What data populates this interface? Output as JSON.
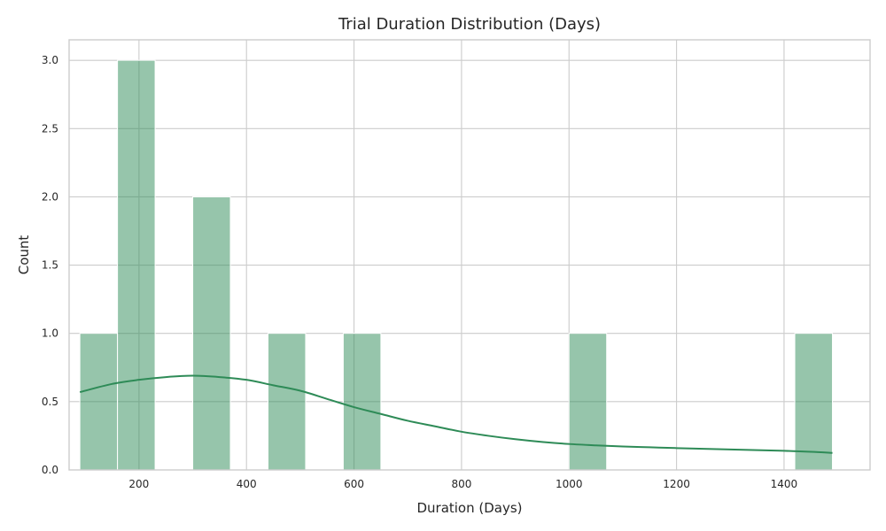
{
  "chart_data": {
    "type": "bar",
    "title": "Trial Duration Distribution (Days)",
    "xlabel": "Duration (Days)",
    "ylabel": "Count",
    "xlim": [
      70,
      1560
    ],
    "ylim": [
      0,
      3.15
    ],
    "xticks": [
      200,
      400,
      600,
      800,
      1000,
      1200,
      1400
    ],
    "yticks": [
      0.0,
      0.5,
      1.0,
      1.5,
      2.0,
      2.5,
      3.0
    ],
    "xtick_labels": [
      "200",
      "400",
      "600",
      "800",
      "1000",
      "1200",
      "1400"
    ],
    "ytick_labels": [
      "0.0",
      "0.5",
      "1.0",
      "1.5",
      "2.0",
      "2.5",
      "3.0"
    ],
    "bins": [
      {
        "start": 90,
        "end": 160,
        "count": 1
      },
      {
        "start": 160,
        "end": 230,
        "count": 3
      },
      {
        "start": 230,
        "end": 300,
        "count": 0
      },
      {
        "start": 300,
        "end": 370,
        "count": 2
      },
      {
        "start": 370,
        "end": 440,
        "count": 0
      },
      {
        "start": 440,
        "end": 510,
        "count": 1
      },
      {
        "start": 510,
        "end": 580,
        "count": 0
      },
      {
        "start": 580,
        "end": 650,
        "count": 1
      },
      {
        "start": 650,
        "end": 720,
        "count": 0
      },
      {
        "start": 720,
        "end": 790,
        "count": 0
      },
      {
        "start": 790,
        "end": 860,
        "count": 0
      },
      {
        "start": 860,
        "end": 930,
        "count": 0
      },
      {
        "start": 930,
        "end": 1000,
        "count": 0
      },
      {
        "start": 1000,
        "end": 1070,
        "count": 1
      },
      {
        "start": 1070,
        "end": 1140,
        "count": 0
      },
      {
        "start": 1140,
        "end": 1210,
        "count": 0
      },
      {
        "start": 1210,
        "end": 1280,
        "count": 0
      },
      {
        "start": 1280,
        "end": 1350,
        "count": 0
      },
      {
        "start": 1350,
        "end": 1420,
        "count": 0
      },
      {
        "start": 1420,
        "end": 1490,
        "count": 1
      }
    ],
    "kde": {
      "x": [
        90,
        150,
        200,
        250,
        300,
        350,
        400,
        450,
        500,
        550,
        600,
        650,
        700,
        750,
        800,
        850,
        900,
        950,
        1000,
        1050,
        1100,
        1150,
        1200,
        1250,
        1300,
        1350,
        1400,
        1450,
        1490
      ],
      "y": [
        0.57,
        0.63,
        0.66,
        0.68,
        0.69,
        0.68,
        0.66,
        0.62,
        0.58,
        0.52,
        0.46,
        0.41,
        0.36,
        0.32,
        0.28,
        0.25,
        0.225,
        0.205,
        0.19,
        0.18,
        0.172,
        0.166,
        0.16,
        0.155,
        0.15,
        0.145,
        0.14,
        0.133,
        0.125
      ]
    },
    "grid": true,
    "legend": "none",
    "colors": {
      "bar": "#2e8b57",
      "line": "#2e8b57",
      "grid": "#cccccc"
    }
  }
}
